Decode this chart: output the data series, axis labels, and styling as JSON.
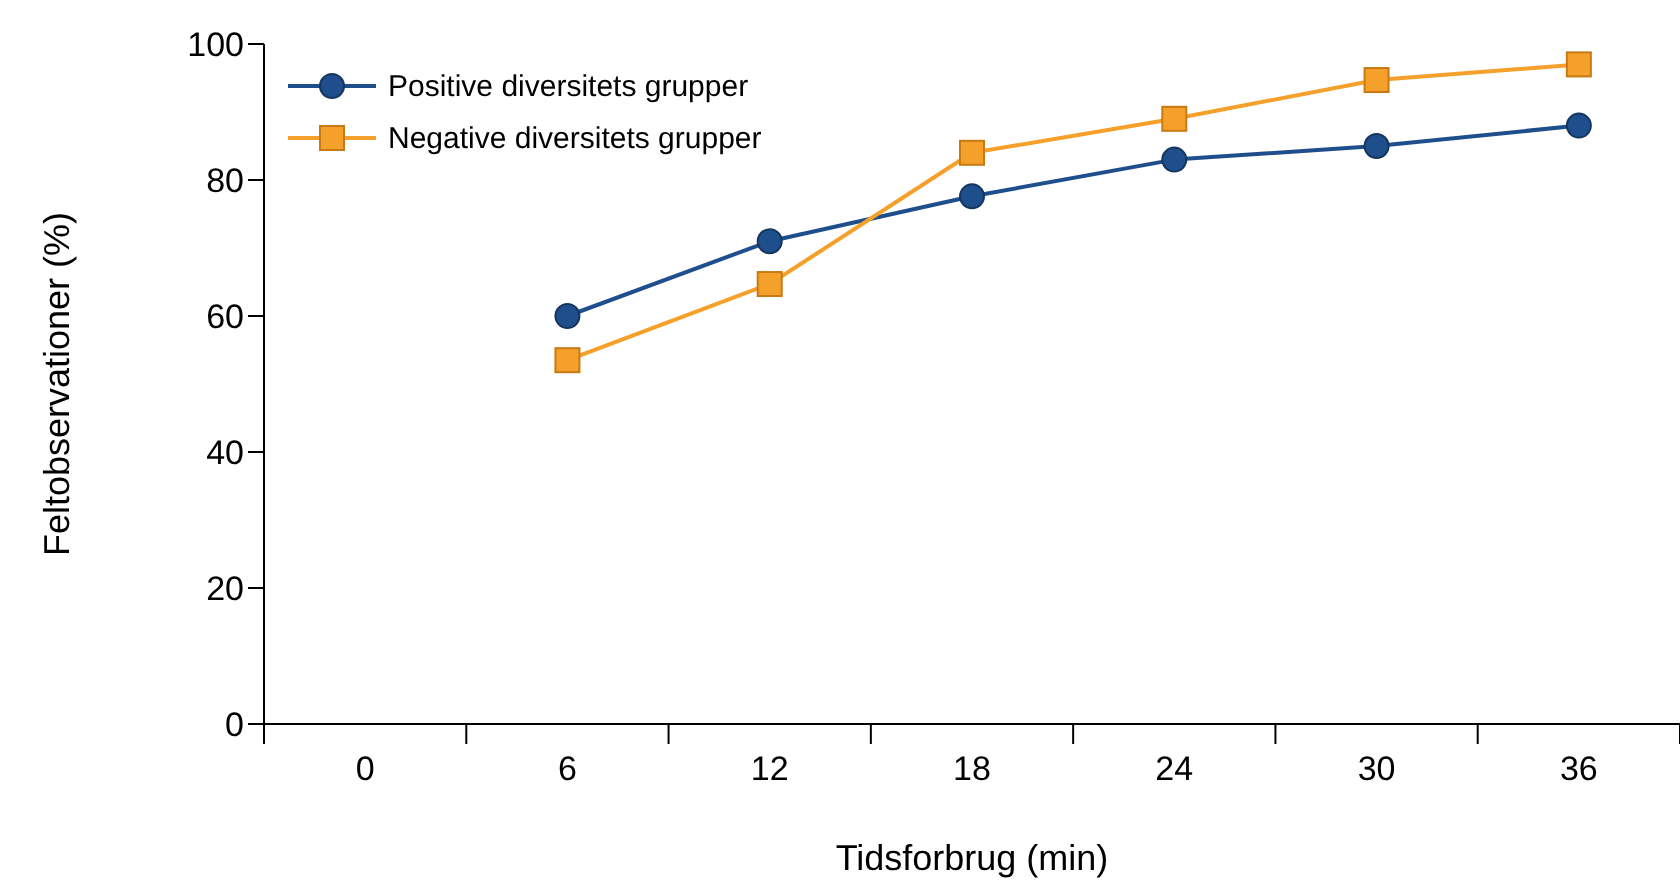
{
  "chart_data": {
    "type": "line",
    "xlabel": "Tidsforbrug (min)",
    "ylabel": "Feltobservationer (%)",
    "categories": [
      "0",
      "6",
      "12",
      "18",
      "24",
      "30",
      "36"
    ],
    "series": [
      {
        "name": "Positive diversitets grupper",
        "color": "#1f4e8c",
        "marker": "circle",
        "values": [
          null,
          60,
          71,
          77.6,
          83,
          85,
          88
        ]
      },
      {
        "name": "Negative diversitets grupper",
        "color": "#f5a02a",
        "marker": "square",
        "values": [
          null,
          53.5,
          64.7,
          84,
          89,
          94.7,
          97
        ]
      }
    ],
    "ylim": [
      0,
      100
    ],
    "yticks": [
      0,
      20,
      40,
      60,
      80,
      100
    ],
    "grid": false,
    "legend": "top left"
  }
}
